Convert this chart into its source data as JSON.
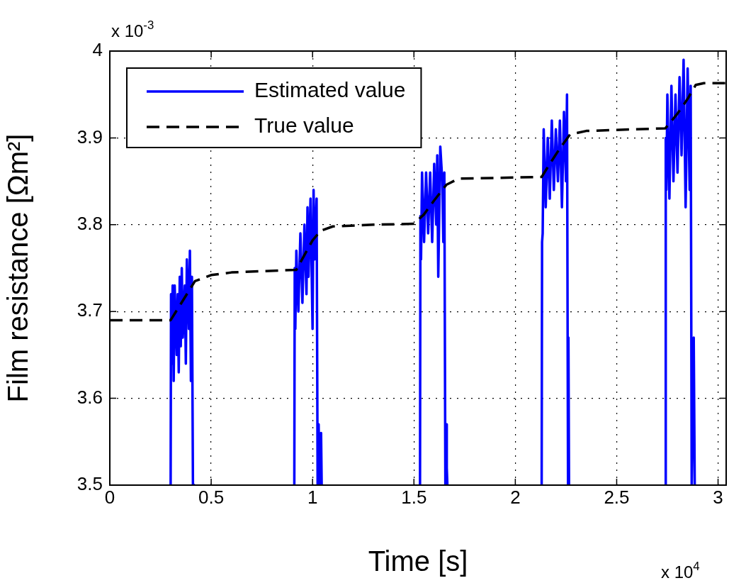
{
  "chart_data": {
    "type": "line",
    "xlabel": "Time [s]",
    "ylabel": "Film resistance [Ωm²]",
    "xlim": [
      0,
      3.04
    ],
    "xticks": [
      0,
      0.5,
      1,
      1.5,
      2,
      2.5,
      3
    ],
    "ylim": [
      3.5,
      4
    ],
    "yticks": [
      3.5,
      3.6,
      3.7,
      3.8,
      3.9,
      4
    ],
    "grid": true,
    "legend": "top left",
    "marker": "none",
    "annotations": [
      "x 10$^{-3}$",
      "x 10$^{4}$"
    ],
    "series": [
      {
        "name": "Estimated value",
        "color": "#0000ff",
        "line_style": "solid",
        "x": [
          0.3,
          0.302,
          0.305,
          0.31,
          0.315,
          0.32,
          0.33,
          0.335,
          0.34,
          0.345,
          0.35,
          0.355,
          0.36,
          0.37,
          0.375,
          0.38,
          0.39,
          0.395,
          0.4,
          0.405,
          0.41,
          0.415,
          0.42,
          0.6,
          0.91,
          0.912,
          0.915,
          0.92,
          0.93,
          0.94,
          0.95,
          0.96,
          0.97,
          0.975,
          0.98,
          0.99,
          1.0,
          1.005,
          1.01,
          1.02,
          1.025,
          1.03,
          1.035,
          1.04,
          1.042,
          1.045,
          1.3,
          1.53,
          1.532,
          1.535,
          1.54,
          1.55,
          1.56,
          1.57,
          1.58,
          1.59,
          1.6,
          1.61,
          1.615,
          1.62,
          1.63,
          1.64,
          1.645,
          1.65,
          1.655,
          1.66,
          1.662,
          1.665,
          1.9,
          2.13,
          2.132,
          2.135,
          2.14,
          2.15,
          2.16,
          2.17,
          2.18,
          2.19,
          2.2,
          2.21,
          2.22,
          2.23,
          2.24,
          2.25,
          2.255,
          2.26,
          2.262,
          2.265,
          2.5,
          2.74,
          2.742,
          2.745,
          2.75,
          2.76,
          2.77,
          2.78,
          2.79,
          2.8,
          2.81,
          2.82,
          2.83,
          2.84,
          2.85,
          2.86,
          2.865,
          2.87,
          2.88,
          2.885,
          2.89
        ],
        "values": [
          3.5,
          3.72,
          3.64,
          3.73,
          3.62,
          3.73,
          3.65,
          3.72,
          3.63,
          3.74,
          3.66,
          3.75,
          3.67,
          3.73,
          3.64,
          3.76,
          3.68,
          3.77,
          3.62,
          3.74,
          3.5,
          3.5,
          3.5,
          null,
          3.5,
          3.75,
          3.68,
          3.77,
          3.7,
          3.79,
          3.71,
          3.8,
          3.72,
          3.82,
          3.74,
          3.83,
          3.68,
          3.84,
          3.76,
          3.83,
          3.5,
          3.57,
          3.5,
          3.5,
          3.56,
          3.5,
          null,
          3.5,
          3.81,
          3.76,
          3.86,
          3.78,
          3.86,
          3.79,
          3.86,
          3.78,
          3.87,
          3.8,
          3.88,
          3.74,
          3.89,
          3.85,
          3.78,
          3.86,
          3.5,
          3.57,
          3.52,
          3.5,
          null,
          3.5,
          3.78,
          3.79,
          3.91,
          3.82,
          3.9,
          3.83,
          3.92,
          3.84,
          3.91,
          3.85,
          3.92,
          3.82,
          3.93,
          3.85,
          3.95,
          3.5,
          3.67,
          3.5,
          null,
          3.5,
          3.9,
          3.84,
          3.95,
          3.83,
          3.96,
          3.85,
          3.95,
          3.86,
          3.97,
          3.88,
          3.99,
          3.82,
          3.98,
          3.84,
          3.96,
          3.5,
          3.67,
          3.5,
          3.5
        ]
      },
      {
        "name": "True value",
        "color": "#000000",
        "line_style": "dashed",
        "x": [
          0,
          0.3,
          0.34,
          0.38,
          0.42,
          0.5,
          0.6,
          0.92,
          0.96,
          1.0,
          1.04,
          1.1,
          1.3,
          1.5,
          1.55,
          1.6,
          1.66,
          1.72,
          2.13,
          2.17,
          2.22,
          2.27,
          2.35,
          2.74,
          2.8,
          2.85,
          2.89,
          2.93,
          3.04
        ],
        "values": [
          3.69,
          3.69,
          3.705,
          3.72,
          3.735,
          3.742,
          3.745,
          3.748,
          3.765,
          3.782,
          3.793,
          3.798,
          3.8,
          3.801,
          3.812,
          3.828,
          3.846,
          3.853,
          3.855,
          3.87,
          3.888,
          3.904,
          3.908,
          3.911,
          3.928,
          3.945,
          3.961,
          3.963,
          3.963
        ]
      }
    ]
  }
}
